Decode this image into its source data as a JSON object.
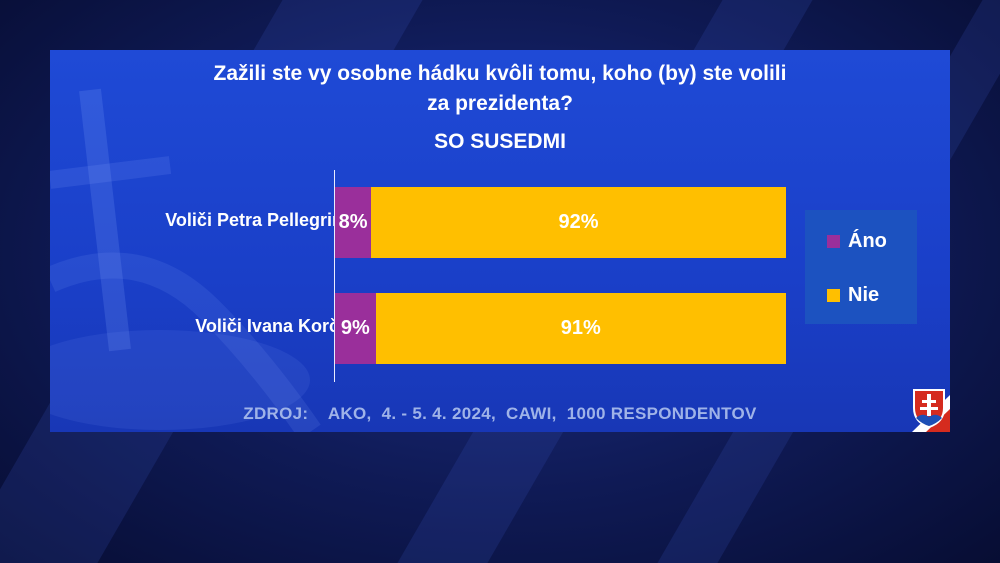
{
  "colors": {
    "ano": "#9a2f9b",
    "nie": "#ffbf00",
    "panel": "#1f4ad6"
  },
  "title": {
    "line1": "Zažili ste vy osobne hádku kvôli tomu, koho (by) ste volili",
    "line2": "za prezidenta?",
    "subtitle": "SO SUSEDMI"
  },
  "source": "ZDROJ:    AKO,  4. - 5. 4. 2024,  CAWI,  1000 RESPONDENTOV",
  "logo": "slovak-coat-of-arms-icon",
  "chart_data": {
    "type": "bar",
    "orientation": "horizontal",
    "stacked": true,
    "title": "Zažili ste vy osobne hádku kvôli tomu, koho (by) ste volili za prezidenta?",
    "subtitle": "SO SUSEDMI",
    "categories": [
      "Voliči Petra Pellegriniho",
      "Voliči Ivana Korčoka"
    ],
    "series": [
      {
        "name": "Áno",
        "values": [
          8,
          9
        ],
        "labels": [
          "8%",
          "9%"
        ],
        "color": "#9a2f9b"
      },
      {
        "name": "Nie",
        "values": [
          92,
          91
        ],
        "labels": [
          "92%",
          "91%"
        ],
        "color": "#ffbf00"
      }
    ],
    "xlim": [
      0,
      100
    ],
    "grid": false,
    "legend_position": "right"
  }
}
